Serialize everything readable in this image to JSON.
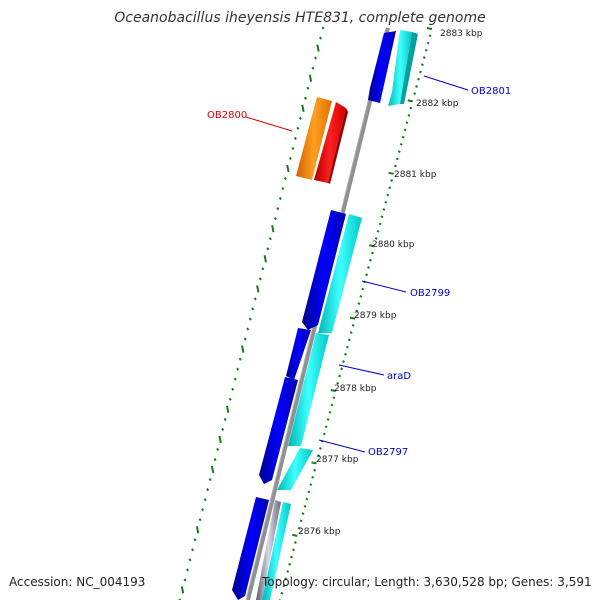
{
  "title": "Oceanobacillus iheyensis HTE831, complete genome",
  "accession": "Accession: NC_004193",
  "topology": "Topology: circular; Length: 3,630,528 bp; Genes: 3,591",
  "colors": {
    "backbone": "#808080",
    "gene_forward": "#0000e6",
    "gene_forward_light": "#00e0e0",
    "gene_reverse": "#ff8000",
    "gene_reverse_red": "#ff0000",
    "label_blue": "#0000cc",
    "label_red": "#dd0000",
    "gc_dots": "#1a7a1a"
  },
  "ticks": [
    {
      "label": "2883 kbp"
    },
    {
      "label": "2882 kbp"
    },
    {
      "label": "2881 kbp"
    },
    {
      "label": "2880 kbp"
    },
    {
      "label": "2879 kbp"
    },
    {
      "label": "2878 kbp"
    },
    {
      "label": "2877 kbp"
    },
    {
      "label": "2876 kbp"
    }
  ],
  "genes": [
    {
      "name": "OB2801",
      "strand": "forward"
    },
    {
      "name": "OB2800",
      "strand": "reverse"
    },
    {
      "name": "OB2799",
      "strand": "forward"
    },
    {
      "name": "araD",
      "strand": "forward"
    },
    {
      "name": "OB2797",
      "strand": "forward"
    }
  ]
}
